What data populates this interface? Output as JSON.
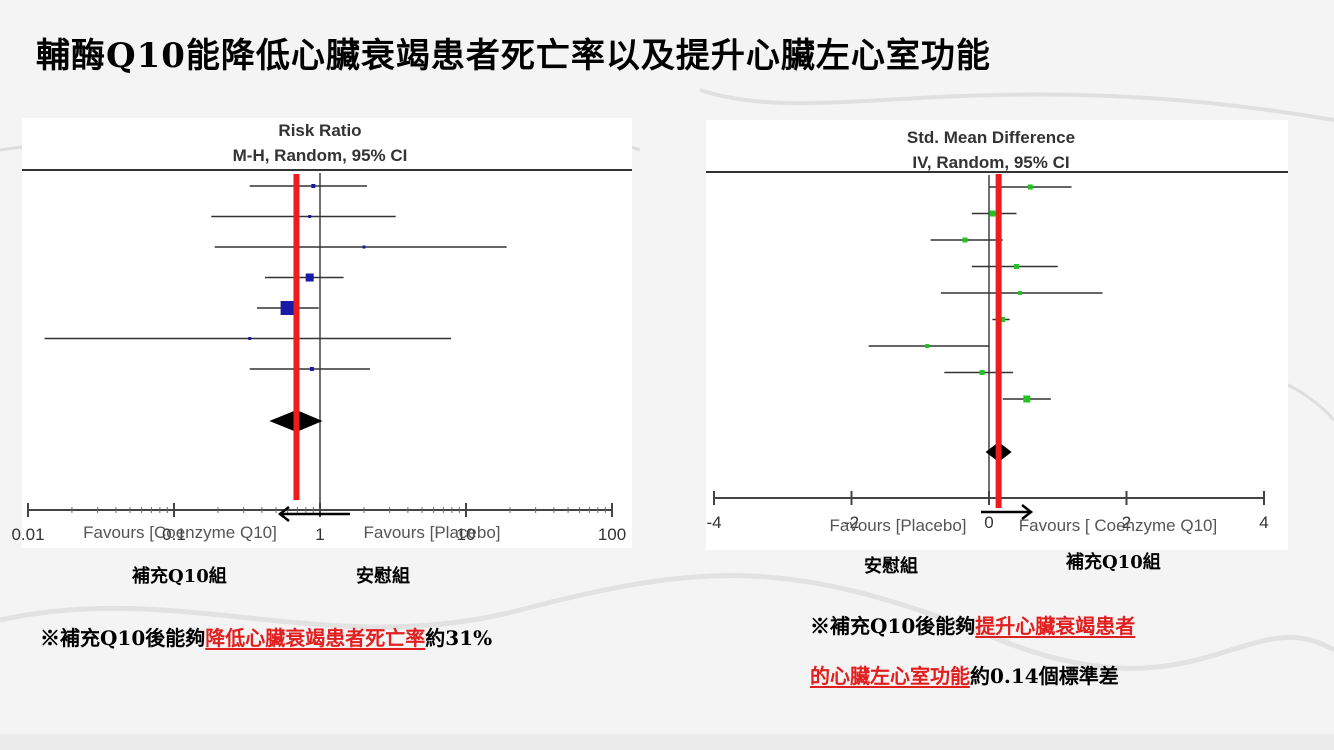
{
  "title": "輔酶Q10能降低心臟衰竭患者死亡率以及提升心臟左心室功能",
  "colors": {
    "highlight": "#e21f1f",
    "ref_line": "#ee1c1c",
    "left_marker": "#1a1aa8",
    "right_marker": "#22c322"
  },
  "left": {
    "header_line1": "Risk Ratio",
    "header_line2": "M-H, Random, 95% CI",
    "favours_left": "Favours [Coenzyme Q10]",
    "favours_right": "Favours [Placebo]",
    "caption_left": "補充Q10組",
    "caption_right": "安慰組",
    "note_prefix": "※補充Q10後能夠",
    "note_highlight": "降低心臟衰竭患者死亡率",
    "note_suffix": "約31%"
  },
  "right": {
    "header_line1": "Std. Mean Difference",
    "header_line2": "IV, Random, 95% CI",
    "favours_left": "Favours [Placebo]",
    "favours_right": "Favours [ Coenzyme Q10]",
    "caption_left": "安慰組",
    "caption_right": "補充Q10組",
    "note_prefix": "※補充Q10後能夠",
    "note_highlight1": "提升心臟衰竭患者",
    "note_highlight2": "的心臟左心室功能",
    "note_suffix": "約0.14個標準差"
  },
  "chart_data": [
    {
      "type": "forest",
      "scale": "log",
      "xlim": [
        0.01,
        100
      ],
      "ticks": [
        0.01,
        0.1,
        1,
        10,
        100
      ],
      "tick_labels": [
        "0.01",
        "0.1",
        "1",
        "10",
        "100"
      ],
      "null_value": 1,
      "studies": [
        {
          "est": 0.9,
          "lo": 0.33,
          "hi": 2.1,
          "size": 4
        },
        {
          "est": 0.85,
          "lo": 0.18,
          "hi": 3.3,
          "size": 3
        },
        {
          "est": 2.0,
          "lo": 0.19,
          "hi": 19,
          "size": 3
        },
        {
          "est": 0.85,
          "lo": 0.42,
          "hi": 1.45,
          "size": 8
        },
        {
          "est": 0.6,
          "lo": 0.37,
          "hi": 0.98,
          "size": 14
        },
        {
          "est": 0.33,
          "lo": 0.013,
          "hi": 7.9,
          "size": 3
        },
        {
          "est": 0.88,
          "lo": 0.33,
          "hi": 2.2,
          "size": 4
        }
      ],
      "pooled": {
        "est": 0.69,
        "lo": 0.45,
        "hi": 1.04
      },
      "highlight_value": 0.69
    },
    {
      "type": "forest",
      "scale": "linear",
      "xlim": [
        -4,
        4
      ],
      "ticks": [
        -4,
        -2,
        0,
        2,
        4
      ],
      "tick_labels": [
        "-4",
        "-2",
        "0",
        "2",
        "4"
      ],
      "null_value": 0,
      "studies": [
        {
          "est": 0.6,
          "lo": 0.0,
          "hi": 1.2,
          "size": 5
        },
        {
          "est": 0.05,
          "lo": -0.25,
          "hi": 0.4,
          "size": 6
        },
        {
          "est": -0.35,
          "lo": -0.85,
          "hi": 0.2,
          "size": 5
        },
        {
          "est": 0.4,
          "lo": -0.25,
          "hi": 1.0,
          "size": 5
        },
        {
          "est": 0.45,
          "lo": -0.7,
          "hi": 1.65,
          "size": 4
        },
        {
          "est": 0.2,
          "lo": 0.05,
          "hi": 0.3,
          "size": 5
        },
        {
          "est": -0.9,
          "lo": -1.75,
          "hi": 0.0,
          "size": 4
        },
        {
          "est": -0.1,
          "lo": -0.65,
          "hi": 0.35,
          "size": 5
        },
        {
          "est": 0.55,
          "lo": 0.2,
          "hi": 0.9,
          "size": 7
        }
      ],
      "pooled": {
        "est": 0.14,
        "lo": -0.05,
        "hi": 0.33
      },
      "highlight_value": 0.14
    }
  ]
}
